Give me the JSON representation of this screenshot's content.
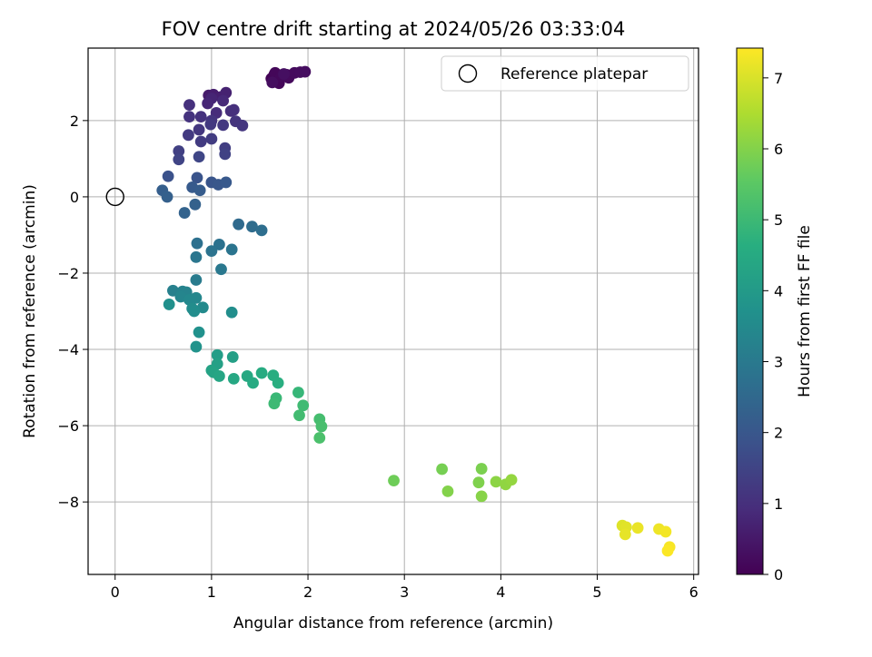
{
  "chart_data": {
    "type": "scatter",
    "title": "FOV centre drift starting at 2024/05/26 03:33:04",
    "xlabel": "Angular distance from reference (arcmin)",
    "ylabel": "Rotation from reference (arcmin)",
    "xlim": [
      -0.28,
      6.05
    ],
    "ylim": [
      -9.9,
      3.9
    ],
    "xticks": [
      "0",
      "1",
      "2",
      "3",
      "4",
      "5",
      "6"
    ],
    "yticks": [
      "2",
      "0",
      "−2",
      "−4",
      "−6",
      "−8"
    ],
    "grid": true,
    "legend": {
      "position": "top-right",
      "entries": [
        "Reference platepar"
      ]
    },
    "colorbar": {
      "label": "Hours from first FF file",
      "colormap": "viridis",
      "range": [
        0,
        7.42
      ],
      "ticks": [
        "0",
        "1",
        "2",
        "3",
        "4",
        "5",
        "6",
        "7"
      ]
    },
    "reference": {
      "x": 0,
      "y": 0
    },
    "series": [
      {
        "values": [
          [
            1.62,
            3.1,
            0.05
          ],
          [
            1.65,
            3.2,
            0.07
          ],
          [
            1.68,
            3.05,
            0.09
          ],
          [
            1.7,
            2.98,
            0.11
          ],
          [
            1.66,
            3.25,
            0.13
          ],
          [
            1.72,
            3.15,
            0.15
          ],
          [
            1.78,
            3.2,
            0.17
          ],
          [
            1.8,
            3.12,
            0.19
          ],
          [
            1.86,
            3.25,
            0.21
          ],
          [
            1.92,
            3.27,
            0.23
          ],
          [
            1.97,
            3.28,
            0.25
          ],
          [
            1.63,
            3.0,
            0.27
          ],
          [
            1.75,
            3.22,
            0.3
          ],
          [
            0.97,
            2.66,
            0.55
          ],
          [
            1.02,
            2.68,
            0.6
          ],
          [
            1.1,
            2.62,
            0.65
          ],
          [
            1.15,
            2.73,
            0.7
          ],
          [
            1.0,
            2.58,
            0.75
          ],
          [
            0.96,
            2.45,
            0.8
          ],
          [
            1.12,
            2.52,
            0.85
          ],
          [
            1.05,
            2.2,
            0.9
          ],
          [
            1.2,
            2.25,
            0.95
          ],
          [
            1.23,
            2.28,
            1.0
          ],
          [
            0.77,
            2.41,
            1.02
          ],
          [
            0.89,
            2.1,
            1.05
          ],
          [
            0.77,
            2.1,
            1.08
          ],
          [
            1.0,
            2.0,
            1.1
          ],
          [
            1.25,
            1.98,
            1.12
          ],
          [
            1.32,
            1.87,
            1.15
          ],
          [
            0.87,
            1.76,
            1.18
          ],
          [
            1.12,
            1.88,
            1.2
          ],
          [
            0.99,
            1.9,
            1.22
          ],
          [
            0.76,
            1.62,
            1.25
          ],
          [
            0.89,
            1.45,
            1.28
          ],
          [
            1.0,
            1.52,
            1.3
          ],
          [
            1.14,
            1.28,
            1.35
          ],
          [
            0.66,
            1.2,
            1.4
          ],
          [
            1.14,
            1.12,
            1.45
          ],
          [
            0.66,
            0.98,
            1.5
          ],
          [
            0.87,
            1.05,
            1.55
          ],
          [
            0.55,
            0.54,
            1.85
          ],
          [
            0.85,
            0.5,
            1.9
          ],
          [
            1.0,
            0.38,
            1.95
          ],
          [
            1.07,
            0.32,
            2.0
          ],
          [
            1.15,
            0.38,
            2.05
          ],
          [
            0.8,
            0.25,
            2.1
          ],
          [
            0.88,
            0.17,
            2.15
          ],
          [
            0.49,
            0.17,
            2.2
          ],
          [
            0.54,
            0.0,
            2.25
          ],
          [
            0.83,
            -0.2,
            2.3
          ],
          [
            0.72,
            -0.42,
            2.35
          ],
          [
            1.28,
            -0.72,
            2.55
          ],
          [
            1.42,
            -0.78,
            2.62
          ],
          [
            1.52,
            -0.88,
            2.68
          ],
          [
            0.85,
            -1.22,
            2.72
          ],
          [
            1.08,
            -1.25,
            2.76
          ],
          [
            1.0,
            -1.42,
            2.8
          ],
          [
            1.21,
            -1.38,
            2.85
          ],
          [
            0.84,
            -1.58,
            2.9
          ],
          [
            1.1,
            -1.9,
            2.95
          ],
          [
            0.84,
            -2.18,
            3.05
          ],
          [
            0.6,
            -2.46,
            3.2
          ],
          [
            0.7,
            -2.48,
            3.25
          ],
          [
            0.74,
            -2.5,
            3.3
          ],
          [
            0.68,
            -2.62,
            3.35
          ],
          [
            0.84,
            -2.65,
            3.4
          ],
          [
            0.77,
            -2.7,
            3.45
          ],
          [
            0.91,
            -2.9,
            3.5
          ],
          [
            0.8,
            -2.93,
            3.55
          ],
          [
            0.82,
            -3.0,
            3.6
          ],
          [
            1.21,
            -3.03,
            3.62
          ],
          [
            0.56,
            -2.82,
            3.68
          ],
          [
            0.87,
            -3.55,
            3.72
          ],
          [
            0.84,
            -3.93,
            3.78
          ],
          [
            1.06,
            -4.15,
            4.1
          ],
          [
            1.22,
            -4.2,
            4.15
          ],
          [
            1.06,
            -4.38,
            4.2
          ],
          [
            1.0,
            -4.55,
            4.25
          ],
          [
            1.02,
            -4.6,
            4.3
          ],
          [
            1.08,
            -4.7,
            4.35
          ],
          [
            1.23,
            -4.77,
            4.4
          ],
          [
            1.37,
            -4.7,
            4.45
          ],
          [
            1.43,
            -4.88,
            4.5
          ],
          [
            1.52,
            -4.62,
            4.55
          ],
          [
            1.64,
            -4.68,
            4.6
          ],
          [
            1.69,
            -4.88,
            4.65
          ],
          [
            1.9,
            -5.13,
            4.9
          ],
          [
            1.67,
            -5.28,
            4.95
          ],
          [
            1.65,
            -5.42,
            5.0
          ],
          [
            1.95,
            -5.47,
            5.05
          ],
          [
            1.91,
            -5.73,
            5.1
          ],
          [
            2.12,
            -5.83,
            5.15
          ],
          [
            2.14,
            -6.02,
            5.2
          ],
          [
            2.12,
            -6.32,
            5.25
          ],
          [
            2.89,
            -7.44,
            5.75
          ],
          [
            3.39,
            -7.14,
            5.85
          ],
          [
            3.8,
            -7.13,
            5.9
          ],
          [
            3.77,
            -7.49,
            5.95
          ],
          [
            3.45,
            -7.72,
            6.0
          ],
          [
            3.8,
            -7.85,
            6.05
          ],
          [
            3.95,
            -7.47,
            6.1
          ],
          [
            4.05,
            -7.54,
            6.15
          ],
          [
            4.11,
            -7.42,
            6.2
          ],
          [
            5.26,
            -8.62,
            7.05
          ],
          [
            5.3,
            -8.66,
            7.1
          ],
          [
            5.29,
            -8.85,
            7.15
          ],
          [
            5.42,
            -8.68,
            7.2
          ],
          [
            5.64,
            -8.71,
            7.25
          ],
          [
            5.71,
            -8.78,
            7.3
          ],
          [
            5.75,
            -9.18,
            7.35
          ],
          [
            5.73,
            -9.28,
            7.4
          ]
        ]
      }
    ]
  }
}
